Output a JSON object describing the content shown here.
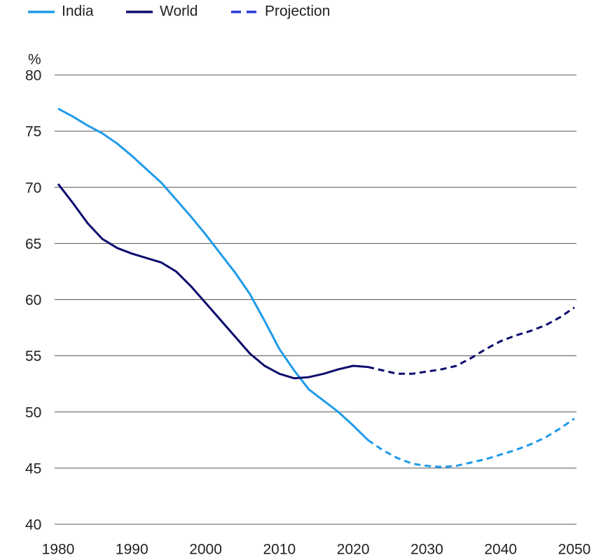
{
  "chart_data": {
    "type": "line",
    "y_label": "%",
    "x": [
      1980,
      1982,
      1984,
      1986,
      1988,
      1990,
      1992,
      1994,
      1996,
      1998,
      2000,
      2002,
      2004,
      2006,
      2008,
      2010,
      2012,
      2014,
      2016,
      2018,
      2020,
      2022,
      2024,
      2026,
      2028,
      2030,
      2032,
      2034,
      2036,
      2038,
      2040,
      2042,
      2044,
      2046,
      2048,
      2050
    ],
    "series": [
      {
        "name": "India",
        "color": "#1e9bea",
        "values": [
          77,
          76.3,
          75.5,
          74.8,
          73.9,
          72.8,
          71.6,
          70.4,
          68.9,
          67.4,
          65.8,
          64.1,
          62.4,
          60.5,
          58.1,
          55.6,
          53.7,
          52.0,
          51.0,
          50.0,
          48.8,
          47.5,
          null,
          null,
          null,
          null,
          null,
          null,
          null,
          null,
          null,
          null,
          null,
          null,
          null,
          null
        ]
      },
      {
        "name": "World",
        "color": "#0c0c6e",
        "values": [
          70.3,
          68.6,
          66.8,
          65.4,
          64.6,
          64.1,
          63.7,
          63.3,
          62.5,
          61.2,
          59.7,
          58.2,
          56.7,
          55.2,
          54.1,
          53.4,
          53.0,
          53.1,
          53.4,
          53.8,
          54.1,
          54.0,
          null,
          null,
          null,
          null,
          null,
          null,
          null,
          null,
          null,
          null,
          null,
          null,
          null,
          null
        ]
      }
    ],
    "projection": {
      "name": "Projection",
      "color": "#2638d4",
      "series": [
        {
          "color": "#1e9bea",
          "values": [
            null,
            null,
            null,
            null,
            null,
            null,
            null,
            null,
            null,
            null,
            null,
            null,
            null,
            null,
            null,
            null,
            null,
            null,
            null,
            null,
            null,
            47.5,
            46.6,
            45.9,
            45.4,
            45.2,
            45.1,
            45.2,
            45.5,
            45.8,
            46.2,
            46.6,
            47.1,
            47.7,
            48.5,
            49.4
          ]
        },
        {
          "color": "#0c0c6e",
          "values": [
            null,
            null,
            null,
            null,
            null,
            null,
            null,
            null,
            null,
            null,
            null,
            null,
            null,
            null,
            null,
            null,
            null,
            null,
            null,
            null,
            null,
            54.0,
            53.7,
            53.4,
            53.4,
            53.6,
            53.8,
            54.1,
            54.8,
            55.6,
            56.3,
            56.8,
            57.2,
            57.7,
            58.4,
            59.3
          ]
        }
      ]
    },
    "xlim": [
      1980,
      2050
    ],
    "xticks": [
      1980,
      1990,
      2000,
      2010,
      2020,
      2030,
      2040,
      2050
    ],
    "ylim": [
      40,
      80
    ],
    "yticks": [
      40,
      45,
      50,
      55,
      60,
      65,
      70,
      75,
      80
    ],
    "grid": true
  }
}
